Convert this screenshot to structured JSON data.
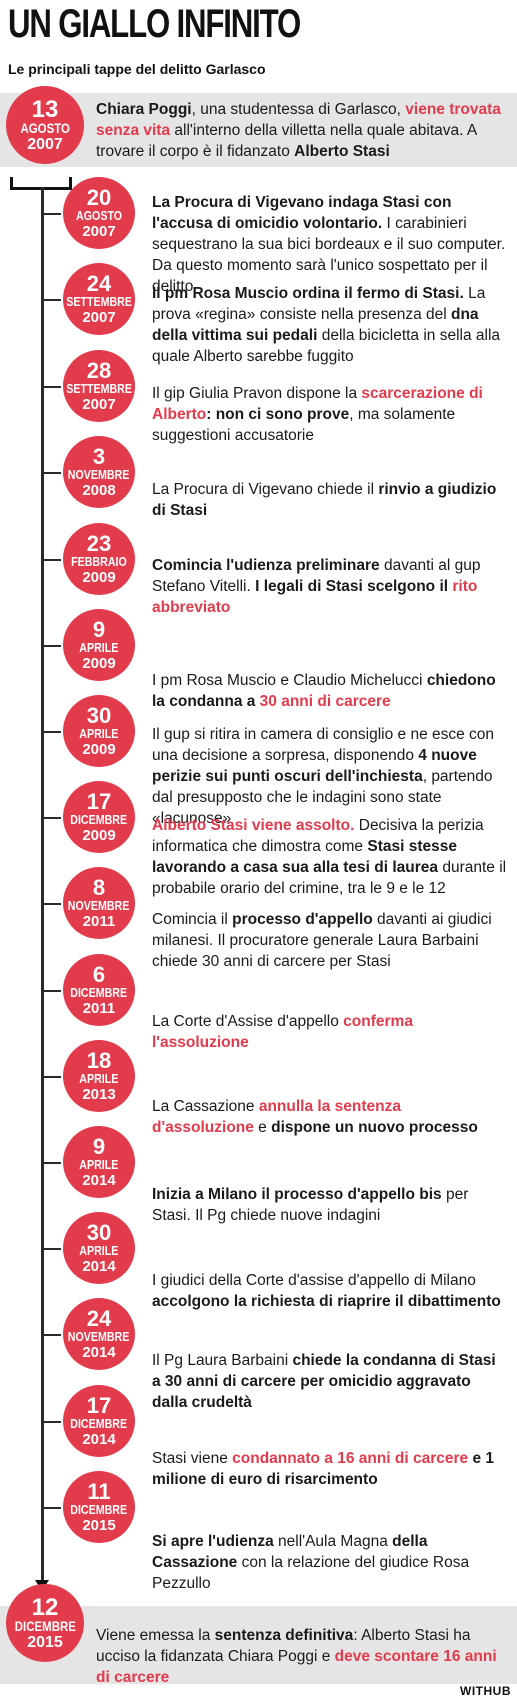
{
  "header": {
    "title": "UN GIALLO INFINITO",
    "subtitle": "Le principali tappe del delitto Garlasco"
  },
  "events": [
    {
      "day": "13",
      "month": "AGOSTO",
      "year": "2007",
      "parts": [
        {
          "t": "Chiara Poggi",
          "s": "b"
        },
        {
          "t": ", una studentessa di Garlasco, ",
          "s": ""
        },
        {
          "t": "viene trovata senza vita",
          "s": "rb"
        },
        {
          "t": " all'interno della villetta nella quale abitava. A trovare il corpo è il fidanzato ",
          "s": ""
        },
        {
          "t": "Alberto Stasi",
          "s": "b"
        }
      ]
    },
    {
      "day": "20",
      "month": "AGOSTO",
      "year": "2007",
      "parts": [
        {
          "t": "La Procura di Vigevano indaga Stasi con l'accusa di omicidio volontario.",
          "s": "b"
        },
        {
          "t": " I carabinieri sequestrano la sua bici bordeaux e il suo computer.  Da questo momento sarà l'unico sospettato per il delitto",
          "s": ""
        }
      ]
    },
    {
      "day": "24",
      "month": "SETTEMBRE",
      "year": "2007",
      "parts": [
        {
          "t": "Il pm Rosa Muscio ordina il fermo di Stasi.",
          "s": "b"
        },
        {
          "t": " La prova «regina» consiste nella presenza del ",
          "s": ""
        },
        {
          "t": "dna della vittima sui pedali",
          "s": "b"
        },
        {
          "t": " della bicicletta in sella alla quale Alberto sarebbe fuggito",
          "s": ""
        }
      ]
    },
    {
      "day": "28",
      "month": "SETTEMBRE",
      "year": "2007",
      "parts": [
        {
          "t": "Il gip Giulia Pravon dispone la ",
          "s": ""
        },
        {
          "t": "scarcerazione di Alberto",
          "s": "rb"
        },
        {
          "t": ": non ci sono prove",
          "s": "b"
        },
        {
          "t": ", ma solamente suggestioni accusatorie",
          "s": ""
        }
      ]
    },
    {
      "day": "3",
      "month": "NOVEMBRE",
      "year": "2008",
      "parts": [
        {
          "t": "La Procura di Vigevano chiede il ",
          "s": ""
        },
        {
          "t": "rinvio a giudizio di Stasi",
          "s": "b"
        }
      ]
    },
    {
      "day": "23",
      "month": "FEBBRAIO",
      "year": "2009",
      "parts": [
        {
          "t": "Comincia l'udienza preliminare",
          "s": "b"
        },
        {
          "t": " davanti al gup Stefano Vitelli. ",
          "s": ""
        },
        {
          "t": "I legali di Stasi scelgono il ",
          "s": "b"
        },
        {
          "t": "rito abbreviato",
          "s": "rb"
        }
      ]
    },
    {
      "day": "9",
      "month": "APRILE",
      "year": "2009",
      "parts": [
        {
          "t": "I pm Rosa Muscio e Claudio Michelucci ",
          "s": ""
        },
        {
          "t": "chiedono la condanna a ",
          "s": "b"
        },
        {
          "t": "30 anni di carcere",
          "s": "rb"
        }
      ]
    },
    {
      "day": "30",
      "month": "APRILE",
      "year": "2009",
      "parts": [
        {
          "t": "Il gup si ritira in camera di consiglio e ne esce con una decisione a sorpresa, disponendo ",
          "s": ""
        },
        {
          "t": "4 nuove perizie sui punti oscuri dell'inchiesta",
          "s": "b"
        },
        {
          "t": ", partendo dal presupposto che le indagini sono state «lacunose»",
          "s": ""
        }
      ]
    },
    {
      "day": "17",
      "month": "DICEMBRE",
      "year": "2009",
      "parts": [
        {
          "t": "Alberto Stasi viene assolto.",
          "s": "rb"
        },
        {
          "t": " Decisiva la perizia informatica che dimostra come ",
          "s": ""
        },
        {
          "t": "Stasi stesse lavorando a casa sua alla tesi di laurea",
          "s": "b"
        },
        {
          "t": " durante il probabile orario del crimine, tra le 9 e le 12",
          "s": ""
        }
      ]
    },
    {
      "day": "8",
      "month": "NOVEMBRE",
      "year": "2011",
      "parts": [
        {
          "t": "Comincia il ",
          "s": ""
        },
        {
          "t": "processo d'appello",
          "s": "b"
        },
        {
          "t": " davanti ai giudici milanesi.  Il procuratore generale Laura Barbaini chiede 30 anni di carcere per Stasi",
          "s": ""
        }
      ]
    },
    {
      "day": "6",
      "month": "DICEMBRE",
      "year": "2011",
      "parts": [
        {
          "t": "La Corte d'Assise d'appello ",
          "s": ""
        },
        {
          "t": "conferma l'assoluzione",
          "s": "rb"
        }
      ]
    },
    {
      "day": "18",
      "month": "APRILE",
      "year": "2013",
      "parts": [
        {
          "t": "La Cassazione ",
          "s": ""
        },
        {
          "t": "annulla la sentenza d'assoluzione",
          "s": "rb"
        },
        {
          "t": " e ",
          "s": ""
        },
        {
          "t": "dispone un nuovo processo",
          "s": "b"
        }
      ]
    },
    {
      "day": "9",
      "month": "APRILE",
      "year": "2014",
      "parts": [
        {
          "t": "Inizia a Milano il processo d'appello bis",
          "s": "b"
        },
        {
          "t": " per Stasi. Il Pg chiede nuove indagini",
          "s": ""
        }
      ]
    },
    {
      "day": "30",
      "month": "APRILE",
      "year": "2014",
      "parts": [
        {
          "t": "I giudici della Corte d'assise d'appello di Milano ",
          "s": ""
        },
        {
          "t": "accolgono la richiesta di riaprire il dibattimento",
          "s": "b"
        }
      ]
    },
    {
      "day": "24",
      "month": "NOVEMBRE",
      "year": "2014",
      "parts": [
        {
          "t": "Il Pg Laura Barbaini ",
          "s": ""
        },
        {
          "t": "chiede la condanna di Stasi a 30 anni di carcere per omicidio aggravato dalla crudeltà",
          "s": "b"
        }
      ]
    },
    {
      "day": "17",
      "month": "DICEMBRE",
      "year": "2014",
      "parts": [
        {
          "t": "Stasi viene ",
          "s": ""
        },
        {
          "t": "condannato a 16 anni di carcere",
          "s": "rb"
        },
        {
          "t": " e 1 milione di euro di risarcimento",
          "s": "b"
        }
      ]
    },
    {
      "day": "11",
      "month": "DICEMBRE",
      "year": "2015",
      "parts": [
        {
          "t": "Si apre l'udienza",
          "s": "b"
        },
        {
          "t": " nell'Aula Magna ",
          "s": ""
        },
        {
          "t": "della Cassazione",
          "s": "b"
        },
        {
          "t": " con la relazione del giudice Rosa Pezzullo",
          "s": ""
        }
      ]
    },
    {
      "day": "12",
      "month": "DICEMBRE",
      "year": "2015",
      "parts": [
        {
          "t": "Viene emessa la ",
          "s": ""
        },
        {
          "t": "sentenza definitiva",
          "s": "b"
        },
        {
          "t": ": Alberto Stasi ha ucciso la fidanzata Chiara Poggi e ",
          "s": ""
        },
        {
          "t": "deve scontare 16 anni di carcere",
          "s": "rb"
        }
      ]
    }
  ],
  "footer": {
    "credit": "WITHUB"
  },
  "colors": {
    "accent": "#e23b4c",
    "band": "#e5e5e5",
    "line": "#2a2a2a"
  }
}
